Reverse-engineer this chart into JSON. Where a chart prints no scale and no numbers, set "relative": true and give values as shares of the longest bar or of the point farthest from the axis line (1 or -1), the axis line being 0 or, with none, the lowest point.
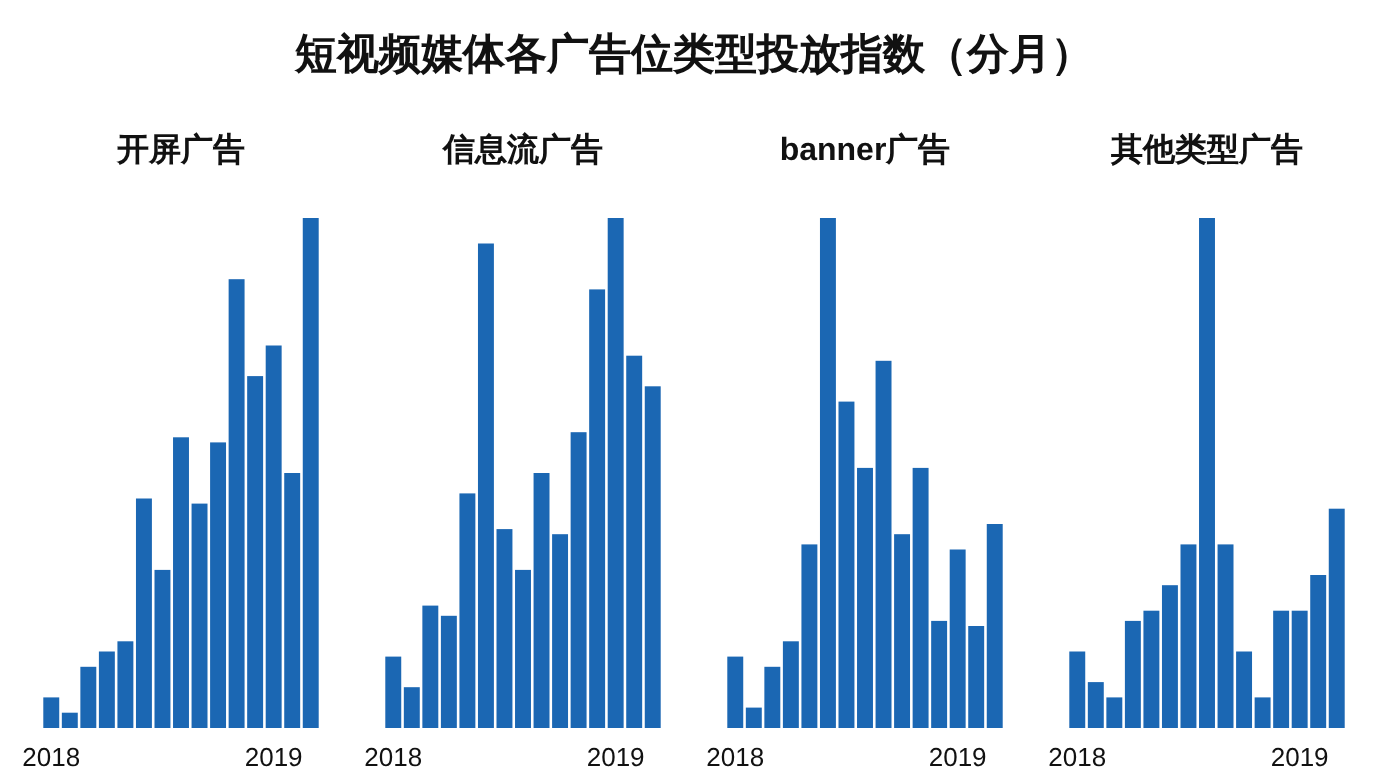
{
  "chart_data": [
    {
      "type": "other",
      "title": "短视频媒体各广告位类型投放指数（分月）"
    },
    {
      "type": "bar",
      "title": "开屏广告",
      "relative": true,
      "color": "#1b67b3",
      "categories": [
        "2018",
        null,
        null,
        null,
        null,
        null,
        null,
        null,
        null,
        null,
        null,
        null,
        "2019",
        null,
        null
      ],
      "values": [
        0.06,
        0.03,
        0.12,
        0.15,
        0.17,
        0.45,
        0.31,
        0.57,
        0.44,
        0.56,
        0.88,
        0.69,
        0.75,
        0.5,
        1
      ]
    },
    {
      "type": "bar",
      "title": "信息流广告",
      "relative": true,
      "color": "#1b67b3",
      "categories": [
        "2018",
        null,
        null,
        null,
        null,
        null,
        null,
        null,
        null,
        null,
        null,
        null,
        "2019",
        null,
        null
      ],
      "values": [
        0.14,
        0.08,
        0.24,
        0.22,
        0.46,
        0.95,
        0.39,
        0.31,
        0.5,
        0.38,
        0.58,
        0.86,
        1,
        0.73,
        0.67
      ]
    },
    {
      "type": "bar",
      "title": "banner广告",
      "relative": true,
      "color": "#1b67b3",
      "categories": [
        "2018",
        null,
        null,
        null,
        null,
        null,
        null,
        null,
        null,
        null,
        null,
        null,
        "2019",
        null,
        null
      ],
      "values": [
        0.14,
        0.04,
        0.12,
        0.17,
        0.36,
        1,
        0.64,
        0.51,
        0.72,
        0.38,
        0.51,
        0.21,
        0.35,
        0.2,
        0.4
      ]
    },
    {
      "type": "bar",
      "title": "其他类型广告",
      "relative": true,
      "color": "#1b67b3",
      "categories": [
        "2018",
        null,
        null,
        null,
        null,
        null,
        null,
        null,
        null,
        null,
        null,
        null,
        "2019",
        null,
        null
      ],
      "values": [
        0.15,
        0.09,
        0.06,
        0.21,
        0.23,
        0.28,
        0.36,
        1,
        0.36,
        0.15,
        0.06,
        0.23,
        0.23,
        0.3,
        0.43
      ]
    }
  ]
}
